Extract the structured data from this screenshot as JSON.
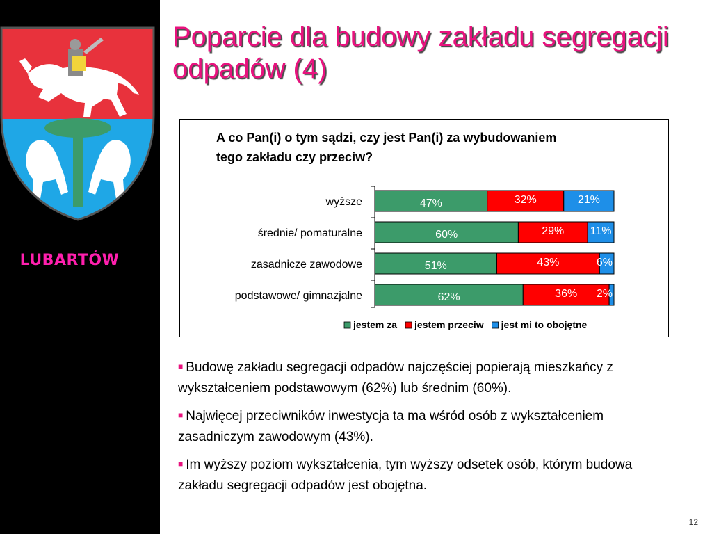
{
  "sidebar": {
    "town_name": "LUBARTÓW",
    "crest_icon": "lubartow-coat-of-arms"
  },
  "title": "Poparcie dla budowy zakładu segregacji odpadów (4)",
  "colors": {
    "title": "#e8127e",
    "town": "#ff1fae",
    "for": "#3c9b6a",
    "against": "#ff0000",
    "indifferent": "#1e8fe8",
    "crest_red": "#e8323c",
    "crest_blue": "#1fa7e6"
  },
  "chart_data": {
    "type": "bar",
    "orientation": "horizontal",
    "stacked": true,
    "percent": true,
    "title": "A co Pan(i) o tym sądzi, czy jest Pan(i) za wybudowaniem tego zakładu czy przeciw?",
    "categories": [
      "wyższe",
      "średnie/ pomaturalne",
      "zasadnicze zawodowe",
      "podstawowe/ gimnazjalne"
    ],
    "series": [
      {
        "name": "jestem za",
        "color": "#3c9b6a",
        "values": [
          47,
          60,
          51,
          62
        ],
        "labels": [
          "47%",
          "60%",
          "51%",
          "62%"
        ]
      },
      {
        "name": "jestem przeciw",
        "color": "#ff0000",
        "values": [
          32,
          29,
          43,
          36
        ],
        "labels": [
          "32%",
          "29%",
          "43%",
          "36%"
        ]
      },
      {
        "name": "jest mi to obojętne",
        "color": "#1e8fe8",
        "values": [
          21,
          11,
          6,
          2
        ],
        "labels": [
          "21%",
          "11%",
          "6%",
          "2%"
        ]
      }
    ],
    "xlim": [
      0,
      100
    ],
    "legend_position": "bottom"
  },
  "bullets": [
    "Budowę zakładu segregacji odpadów najczęściej popierają mieszkańcy z wykształceniem podstawowym (62%) lub średnim (60%).",
    "Najwięcej przeciwników inwestycja ta ma wśród osób z wykształceniem zasadniczym zawodowym (43%).",
    "Im wyższy poziom wykształcenia, tym wyższy odsetek osób, którym budowa zakładu segregacji odpadów jest obojętna."
  ],
  "bullet_marker": "■",
  "page_number": "12"
}
